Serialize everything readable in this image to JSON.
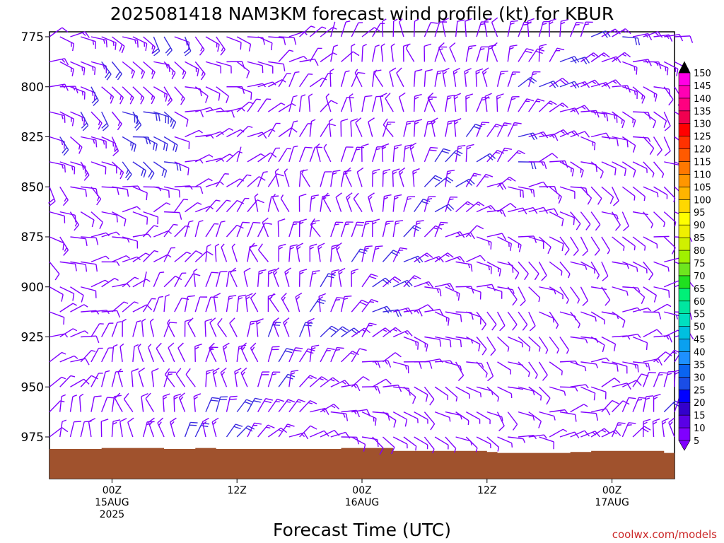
{
  "title": "2025081418 NAM3KM forecast wind profile (kt) for KBUR",
  "credit": "coolwx.com/models",
  "chart_data": {
    "type": "wind-barb time-height",
    "xlabel": "Forecast Time (UTC)",
    "ylabel": "",
    "y_ticks": [
      "775",
      "800",
      "825",
      "850",
      "875",
      "900",
      "925",
      "950",
      "975"
    ],
    "ylim": [
      770,
      988
    ],
    "y_reversed": true,
    "x_ticks": [
      {
        "hour": 6,
        "lines": [
          "00Z",
          "15AUG",
          "2025"
        ]
      },
      {
        "hour": 18,
        "lines": [
          "12Z"
        ]
      },
      {
        "hour": 30,
        "lines": [
          "00Z",
          "16AUG"
        ]
      },
      {
        "hour": 42,
        "lines": [
          "12Z"
        ]
      },
      {
        "hour": 54,
        "lines": [
          "00Z",
          "17AUG"
        ]
      }
    ],
    "xlim": [
      0,
      60
    ],
    "forecast_hours": [
      0,
      1,
      2,
      3,
      4,
      5,
      6,
      7,
      8,
      9,
      10,
      11,
      12,
      13,
      14,
      15,
      16,
      17,
      18,
      19,
      20,
      21,
      22,
      23,
      24,
      25,
      26,
      27,
      28,
      29,
      30,
      31,
      32,
      33,
      34,
      35,
      36,
      37,
      38,
      39,
      40,
      41,
      42,
      43,
      44,
      45,
      46,
      47,
      48,
      49,
      50,
      51,
      52,
      53,
      54,
      55,
      56,
      57,
      58,
      59,
      60
    ],
    "pressure_levels": [
      775,
      787.5,
      800,
      812.5,
      825,
      837.5,
      850,
      862.5,
      875,
      887.5,
      900,
      912.5,
      925,
      937.5,
      950,
      962.5,
      975
    ],
    "surface_pressure": {
      "hours": [
        0,
        3,
        5,
        9,
        11,
        14,
        16,
        19,
        25,
        28,
        33,
        35,
        42,
        43,
        46,
        50,
        52,
        57,
        59,
        60
      ],
      "values": [
        981,
        981,
        980.5,
        980.5,
        981,
        980.5,
        981,
        981,
        981,
        980.5,
        982,
        982,
        982.5,
        983,
        983,
        982.5,
        982,
        982,
        983,
        983
      ]
    },
    "colorbar": {
      "levels": [
        5,
        10,
        15,
        20,
        25,
        30,
        35,
        40,
        45,
        50,
        55,
        60,
        65,
        70,
        75,
        80,
        85,
        90,
        95,
        100,
        105,
        110,
        115,
        120,
        125,
        130,
        135,
        140,
        145,
        150
      ],
      "colors": [
        "#8000ff",
        "#5a00e6",
        "#3300cc",
        "#0000ff",
        "#1a4de6",
        "#0a64f0",
        "#1e90ff",
        "#0aa0f0",
        "#00c0e0",
        "#00e0c0",
        "#00e6a0",
        "#00f078",
        "#20e020",
        "#6ee61e",
        "#a0f000",
        "#d0f000",
        "#f0f000",
        "#ffff00",
        "#ffd800",
        "#ffb400",
        "#ff9600",
        "#ff7800",
        "#ff5a00",
        "#ff3200",
        "#ff0000",
        "#f00050",
        "#ff0080",
        "#ff00b4",
        "#ff00e6",
        "#ff00ff"
      ],
      "barb_color": "#8000ff",
      "strong_barb_color": "#3a2ae0"
    }
  }
}
